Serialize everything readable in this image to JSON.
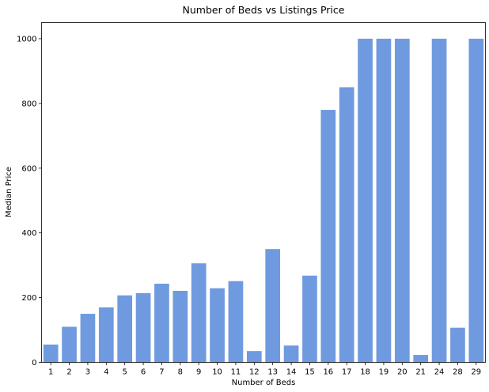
{
  "chart_data": {
    "type": "bar",
    "title": "Number of Beds vs Listings Price",
    "xlabel": "Number of Beds",
    "ylabel": "Median Price",
    "categories": [
      "1",
      "2",
      "3",
      "4",
      "5",
      "6",
      "7",
      "8",
      "9",
      "10",
      "11",
      "12",
      "13",
      "14",
      "15",
      "16",
      "17",
      "18",
      "19",
      "20",
      "21",
      "24",
      "28",
      "29"
    ],
    "values": [
      55,
      110,
      150,
      170,
      207,
      214,
      243,
      221,
      306,
      229,
      251,
      35,
      350,
      52,
      268,
      780,
      850,
      1000,
      1000,
      1000,
      23,
      1000,
      107,
      1000
    ],
    "ylim": [
      0,
      1050
    ],
    "yticks": [
      0,
      200,
      400,
      600,
      800,
      1000
    ],
    "bar_color": "#6f9ae0",
    "grid": false
  }
}
